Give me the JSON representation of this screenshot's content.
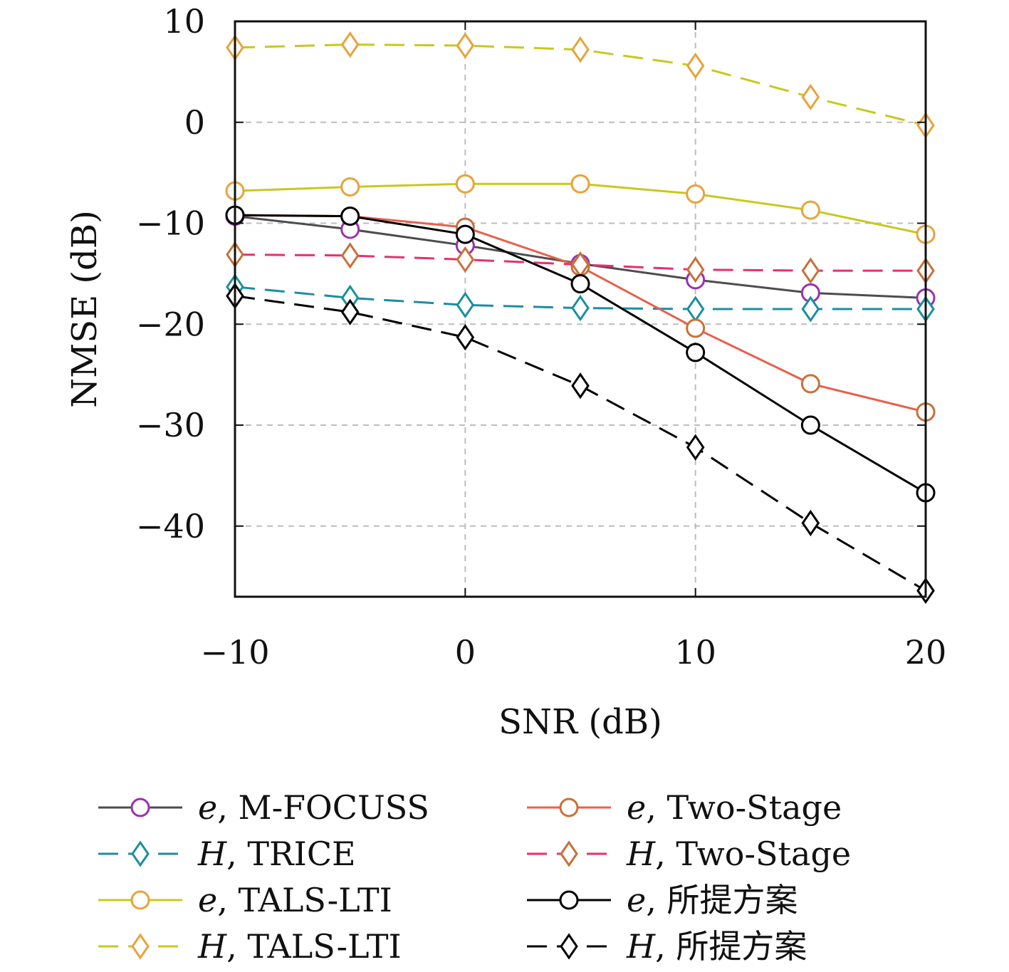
{
  "chart_data": {
    "type": "line",
    "xlabel": "SNR (dB)",
    "ylabel": "NMSE (dB)",
    "xlim": [
      -10,
      20
    ],
    "ylim": [
      -47,
      10
    ],
    "xticks": [
      -10,
      0,
      10,
      20
    ],
    "yticks": [
      10,
      0,
      -10,
      -20,
      -30,
      -40
    ],
    "xtick_labels": [
      "−10",
      "0",
      "10",
      "20"
    ],
    "ytick_labels": [
      "10",
      "0",
      "−10",
      "−20",
      "−30",
      "−40"
    ],
    "grid": true,
    "legend_position": "bottom",
    "x": [
      -10,
      -5,
      0,
      5,
      10,
      15,
      20
    ],
    "series": [
      {
        "name": "e, M-FOCUSS",
        "symbol": "e",
        "method": "M-FOCUSS",
        "line_color": "#4d4d4d",
        "marker_color": "#9b30b0",
        "marker": "circle",
        "dash": false,
        "values": [
          -9.3,
          -10.6,
          -12.2,
          -14.0,
          -15.6,
          -16.9,
          -17.4
        ]
      },
      {
        "name": "H, TRICE",
        "symbol": "H",
        "method": "TRICE",
        "line_color": "#1a8fa0",
        "marker_color": "#1a8fa0",
        "marker": "diamond",
        "dash": true,
        "values": [
          -16.3,
          -17.4,
          -18.1,
          -18.4,
          -18.5,
          -18.5,
          -18.5
        ]
      },
      {
        "name": "e, TALS-LTI",
        "symbol": "e",
        "method": "TALS-LTI",
        "line_color": "#c9c81e",
        "marker_color": "#e8a33c",
        "marker": "circle",
        "dash": false,
        "values": [
          -6.8,
          -6.4,
          -6.1,
          -6.1,
          -7.1,
          -8.7,
          -11.1
        ]
      },
      {
        "name": "H, TALS-LTI",
        "symbol": "H",
        "method": "TALS-LTI",
        "line_color": "#c9c81e",
        "marker_color": "#e8a33c",
        "marker": "diamond",
        "dash": true,
        "values": [
          7.4,
          7.7,
          7.6,
          7.2,
          5.6,
          2.5,
          -0.3
        ]
      },
      {
        "name": "e, Two-Stage",
        "symbol": "e",
        "method": "Two-Stage",
        "line_color": "#e8604c",
        "marker_color": "#c8703a",
        "marker": "circle",
        "dash": false,
        "values": [
          -9.2,
          -9.3,
          -10.4,
          -14.3,
          -20.4,
          -25.9,
          -28.7
        ]
      },
      {
        "name": "H, Two-Stage",
        "symbol": "H",
        "method": "Two-Stage",
        "line_color": "#e8306a",
        "marker_color": "#c8703a",
        "marker": "diamond",
        "dash": true,
        "values": [
          -13.1,
          -13.2,
          -13.6,
          -14.1,
          -14.6,
          -14.7,
          -14.7
        ]
      },
      {
        "name": "e, 所提方案",
        "symbol": "e",
        "method": "所提方案",
        "line_color": "#000000",
        "marker_color": "#000000",
        "marker": "circle",
        "dash": false,
        "values": [
          -9.2,
          -9.3,
          -11.1,
          -16.0,
          -22.8,
          -30.0,
          -36.7
        ]
      },
      {
        "name": "H, 所提方案",
        "symbol": "H",
        "method": "所提方案",
        "line_color": "#000000",
        "marker_color": "#000000",
        "marker": "diamond",
        "dash": true,
        "values": [
          -17.2,
          -18.8,
          -21.3,
          -26.1,
          -32.2,
          -39.7,
          -46.4
        ]
      }
    ]
  }
}
